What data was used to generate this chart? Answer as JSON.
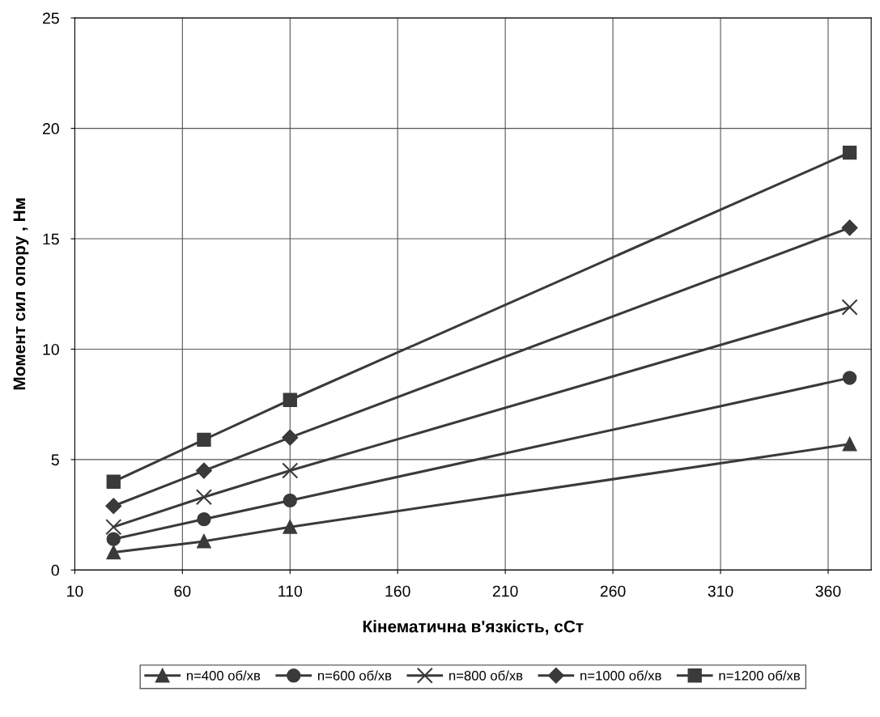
{
  "chart_data": {
    "type": "line",
    "xlabel": "Кінематична в'язкість, сСт",
    "ylabel": "Момент сил опору , Нм",
    "x": [
      28,
      70,
      110,
      370
    ],
    "series": [
      {
        "name": "n=400 об/хв",
        "color": "#3a3a3a",
        "marker": "triangle",
        "values": [
          0.8,
          1.3,
          1.95,
          5.7
        ]
      },
      {
        "name": "n=600 об/хв",
        "color": "#3a3a3a",
        "marker": "circle",
        "values": [
          1.4,
          2.3,
          3.15,
          8.7
        ]
      },
      {
        "name": "n=800 об/хв",
        "color": "#3a3a3a",
        "marker": "cross",
        "values": [
          1.95,
          3.3,
          4.5,
          11.9
        ]
      },
      {
        "name": "n=1000 об/хв",
        "color": "#3a3a3a",
        "marker": "diamond",
        "values": [
          2.9,
          4.5,
          6.0,
          15.5
        ]
      },
      {
        "name": "n=1200 об/хв",
        "color": "#3a3a3a",
        "marker": "square",
        "values": [
          4.0,
          5.9,
          7.7,
          18.9
        ]
      }
    ],
    "xlim": [
      10,
      380
    ],
    "xticks": [
      10,
      60,
      110,
      160,
      210,
      260,
      310,
      360
    ],
    "ylim": [
      0,
      25
    ],
    "yticks": [
      0,
      5,
      10,
      15,
      20,
      25
    ],
    "grid": true,
    "legend": "bottom",
    "line_style": "solid"
  }
}
